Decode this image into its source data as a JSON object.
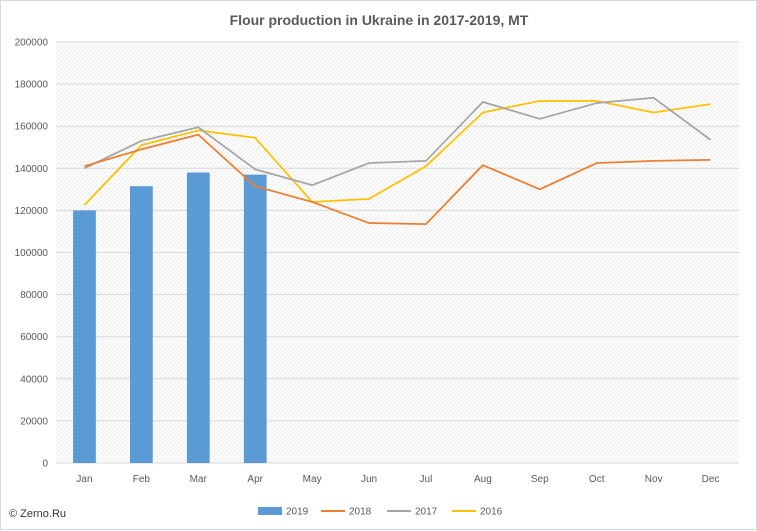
{
  "chart_data": {
    "type": "bar",
    "title": "Flour production in Ukraine in 2017-2019, MT",
    "xlabel": "",
    "ylabel": "",
    "ylim": [
      0,
      200000
    ],
    "yticks": [
      0,
      20000,
      40000,
      60000,
      80000,
      100000,
      120000,
      140000,
      160000,
      180000,
      200000
    ],
    "grid": true,
    "legend_position": "bottom",
    "categories": [
      "Jan",
      "Feb",
      "Mar",
      "Apr",
      "May",
      "Jun",
      "Jul",
      "Aug",
      "Sep",
      "Oct",
      "Nov",
      "Dec"
    ],
    "series": [
      {
        "name": "2019",
        "type": "bar",
        "color": "#5b9bd5",
        "values": [
          120000,
          131500,
          138000,
          137000,
          null,
          null,
          null,
          null,
          null,
          null,
          null,
          null
        ]
      },
      {
        "name": "2018",
        "type": "line",
        "color": "#ed7d31",
        "values": [
          141000,
          149000,
          156000,
          131500,
          124000,
          114000,
          113500,
          141500,
          130000,
          142500,
          143500,
          144000
        ]
      },
      {
        "name": "2017",
        "type": "line",
        "color": "#a5a5a5",
        "values": [
          140000,
          153000,
          159500,
          139500,
          132000,
          142500,
          143500,
          171500,
          163500,
          171000,
          173500,
          153500
        ]
      },
      {
        "name": "2016",
        "type": "line",
        "color": "#ffc000",
        "values": [
          122500,
          151000,
          158000,
          154500,
          124000,
          125500,
          141000,
          166500,
          172000,
          172000,
          166500,
          170500
        ]
      }
    ]
  },
  "copyright": "© Zerno.Ru"
}
